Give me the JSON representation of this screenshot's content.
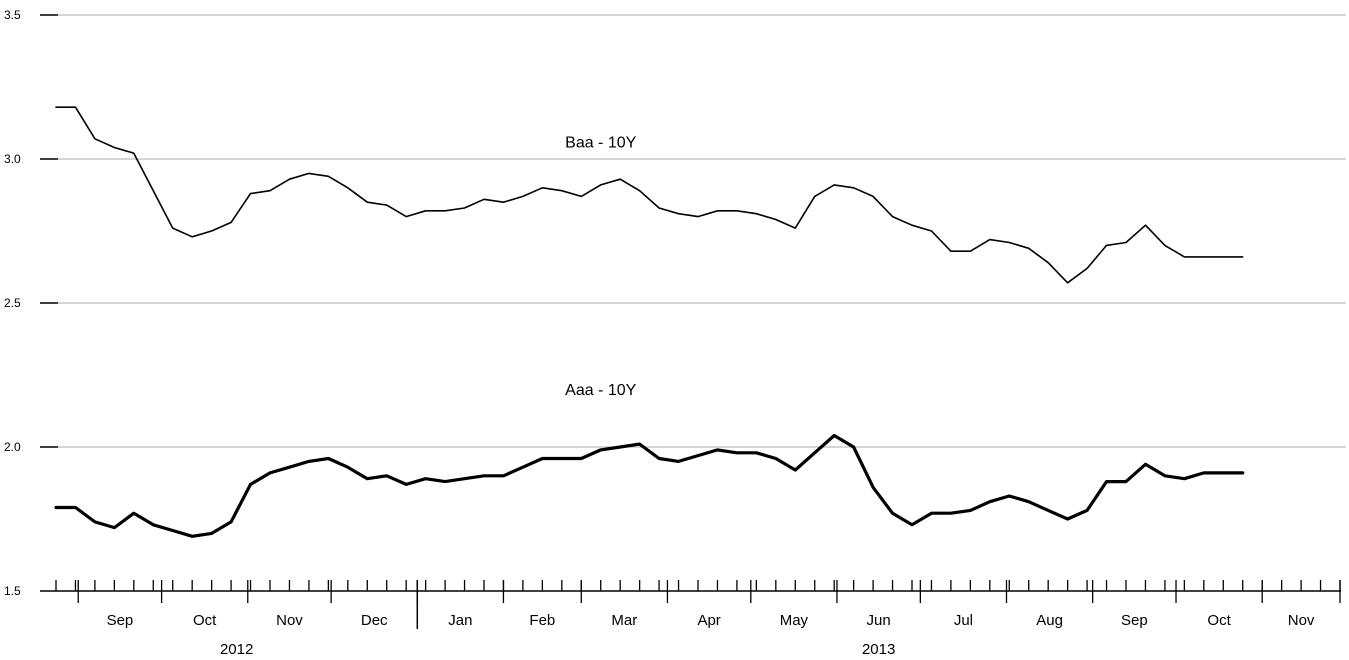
{
  "chart_data": {
    "type": "line",
    "title": "",
    "xlabel": "",
    "ylabel": "",
    "ylim": [
      1.5,
      3.5
    ],
    "xlim": [
      "2012-08-24",
      "2013-11-29"
    ],
    "grid": true,
    "yticks": [
      {
        "value": 1.5,
        "label": "1.5"
      },
      {
        "value": 2.0,
        "label": "2.0"
      },
      {
        "value": 2.5,
        "label": "2.5"
      },
      {
        "value": 3.0,
        "label": "3.0"
      },
      {
        "value": 3.5,
        "label": "3.5"
      }
    ],
    "month_ticks": [
      {
        "label": "Sep",
        "start": "2012-09-01",
        "end": "2012-10-01"
      },
      {
        "label": "Oct",
        "start": "2012-10-01",
        "end": "2012-11-01"
      },
      {
        "label": "Nov",
        "start": "2012-11-01",
        "end": "2012-12-01"
      },
      {
        "label": "Dec",
        "start": "2012-12-01",
        "end": "2013-01-01"
      },
      {
        "label": "Jan",
        "start": "2013-01-01",
        "end": "2013-02-01"
      },
      {
        "label": "Feb",
        "start": "2013-02-01",
        "end": "2013-03-01"
      },
      {
        "label": "Mar",
        "start": "2013-03-01",
        "end": "2013-04-01"
      },
      {
        "label": "Apr",
        "start": "2013-04-01",
        "end": "2013-05-01"
      },
      {
        "label": "May",
        "start": "2013-05-01",
        "end": "2013-06-01"
      },
      {
        "label": "Jun",
        "start": "2013-06-01",
        "end": "2013-07-01"
      },
      {
        "label": "Jul",
        "start": "2013-07-01",
        "end": "2013-08-01"
      },
      {
        "label": "Aug",
        "start": "2013-08-01",
        "end": "2013-09-01"
      },
      {
        "label": "Sep",
        "start": "2013-09-01",
        "end": "2013-10-01"
      },
      {
        "label": "Oct",
        "start": "2013-10-01",
        "end": "2013-11-01"
      },
      {
        "label": "Nov",
        "start": "2013-11-01",
        "end": "2013-11-29"
      }
    ],
    "year_labels": [
      {
        "label": "2012",
        "start": "2012-08-24",
        "end": "2013-01-01"
      },
      {
        "label": "2013",
        "start": "2013-01-01",
        "end": "2013-11-29"
      }
    ],
    "week_start": "2012-08-24",
    "dates": [
      "2012-08-24",
      "2012-08-31",
      "2012-09-07",
      "2012-09-14",
      "2012-09-21",
      "2012-09-28",
      "2012-10-05",
      "2012-10-12",
      "2012-10-19",
      "2012-10-26",
      "2012-11-02",
      "2012-11-09",
      "2012-11-16",
      "2012-11-23",
      "2012-11-30",
      "2012-12-07",
      "2012-12-14",
      "2012-12-21",
      "2012-12-28",
      "2013-01-04",
      "2013-01-11",
      "2013-01-18",
      "2013-01-25",
      "2013-02-01",
      "2013-02-08",
      "2013-02-15",
      "2013-02-22",
      "2013-03-01",
      "2013-03-08",
      "2013-03-15",
      "2013-03-22",
      "2013-03-29",
      "2013-04-05",
      "2013-04-12",
      "2013-04-19",
      "2013-04-26",
      "2013-05-03",
      "2013-05-10",
      "2013-05-17",
      "2013-05-24",
      "2013-05-31",
      "2013-06-07",
      "2013-06-14",
      "2013-06-21",
      "2013-06-28",
      "2013-07-05",
      "2013-07-12",
      "2013-07-19",
      "2013-07-26",
      "2013-08-02",
      "2013-08-09",
      "2013-08-16",
      "2013-08-23",
      "2013-08-30",
      "2013-09-06",
      "2013-09-13",
      "2013-09-20",
      "2013-09-27",
      "2013-10-04",
      "2013-10-11",
      "2013-10-18",
      "2013-10-25"
    ],
    "series": [
      {
        "name": "Baa - 10Y",
        "color": "#000000",
        "weight": "thin",
        "values": [
          3.18,
          3.18,
          3.07,
          3.04,
          3.02,
          2.89,
          2.76,
          2.73,
          2.75,
          2.78,
          2.88,
          2.89,
          2.93,
          2.95,
          2.94,
          2.9,
          2.85,
          2.84,
          2.8,
          2.82,
          2.82,
          2.83,
          2.86,
          2.85,
          2.87,
          2.9,
          2.89,
          2.87,
          2.91,
          2.93,
          2.89,
          2.83,
          2.81,
          2.8,
          2.82,
          2.82,
          2.81,
          2.79,
          2.76,
          2.87,
          2.91,
          2.9,
          2.87,
          2.8,
          2.77,
          2.75,
          2.68,
          2.68,
          2.72,
          2.71,
          2.69,
          2.64,
          2.57,
          2.62,
          2.7,
          2.71,
          2.77,
          2.7,
          2.66,
          2.66,
          2.66,
          2.66
        ]
      },
      {
        "name": "Aaa - 10Y",
        "color": "#000000",
        "weight": "thick",
        "values": [
          1.79,
          1.79,
          1.74,
          1.72,
          1.77,
          1.73,
          1.71,
          1.69,
          1.7,
          1.74,
          1.87,
          1.91,
          1.93,
          1.95,
          1.96,
          1.93,
          1.89,
          1.9,
          1.87,
          1.89,
          1.88,
          1.89,
          1.9,
          1.9,
          1.93,
          1.96,
          1.96,
          1.96,
          1.99,
          2.0,
          2.01,
          1.96,
          1.95,
          1.97,
          1.99,
          1.98,
          1.98,
          1.96,
          1.92,
          1.98,
          2.04,
          2.0,
          1.86,
          1.77,
          1.73,
          1.77,
          1.77,
          1.78,
          1.81,
          1.83,
          1.81,
          1.78,
          1.75,
          1.78,
          1.88,
          1.88,
          1.94,
          1.9,
          1.89,
          1.91,
          1.91,
          1.91
        ]
      }
    ],
    "annotations": [
      {
        "text": "Baa - 10Y",
        "x": "2013-03-08",
        "y": 3.04
      },
      {
        "text": "Aaa - 10Y",
        "x": "2013-03-08",
        "y": 2.18
      }
    ]
  }
}
